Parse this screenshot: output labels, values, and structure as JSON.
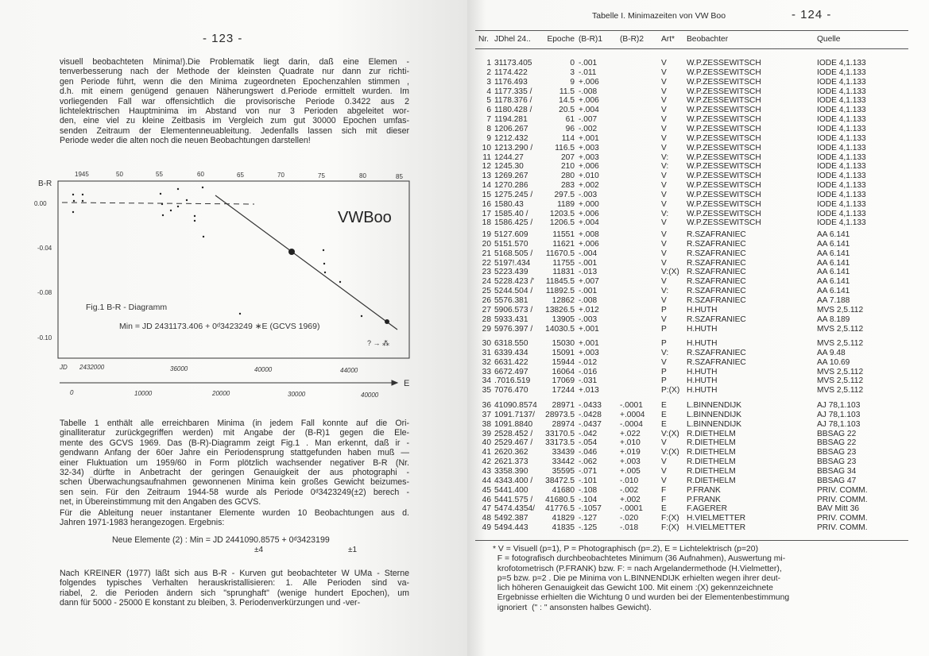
{
  "left_page": {
    "page_number": "- 123 -",
    "para1": [
      "visuell beobachteten Minima!).Die Problematik liegt darin, daß eine Elemen -",
      "tenverbesserung nach der Methode der kleinsten Quadrate nur dann zur richti-",
      "gen Periode führt, wenn die den Minima zugeordneten Epochenzahlen stimmen ,",
      "d.h. mit einem genügend genauen Näherungswert d.Periode ermittelt wurden. Im",
      "vorliegenden Fall war offensichtlich die provisorische Periode 0.3422 aus 2",
      "lichtelektrischen Hauptminima im Abstand von nur 3 Perioden abgeleitet wor-",
      "den, eine viel zu kleine Zeitbasis im Vergleich zum gut 30000 Epochen umfas-",
      "senden Zeitraum der Elementenneuableitung. Jedenfalls lassen sich mit dieser",
      "Periode weder die alten noch die neuen Beobachtungen darstellen!"
    ],
    "figure": {
      "star": "VWBoo",
      "caption": "Fig.1   B-R - Diagramm",
      "formula": "Min = JD 2431173.406 + 0ᵈ3423249 ∗E   (GCVS 1969)",
      "y_label": "B-R",
      "y_ticks": [
        "0.00",
        "-0.04",
        "-0.08",
        "-0.10"
      ],
      "top_ticks": [
        "1945",
        "50",
        "55",
        "60",
        "65",
        "70",
        "75",
        "80",
        "85"
      ],
      "jd_prefix": "JD",
      "jd_ticks": [
        "2432000",
        "36000",
        "40000",
        "44000"
      ],
      "e_ticks": [
        "0",
        "10000",
        "20000",
        "30000",
        "40000"
      ],
      "e_label": "E",
      "annot": "? → ⁂"
    },
    "para2": [
      "Tabelle 1 enthält alle erreichbaren Minima (in jedem Fall konnte auf die Ori-",
      "ginalliteratur zurückgegriffen werden) mit Angabe der (B-R)1 gegen die Ele-",
      "mente des GCVS 1969. Das (B-R)-Diagramm zeigt Fig.1 . Man erkennt, daß ir -",
      "gendwann Anfang der 60er Jahre ein Periodensprung stattgefunden haben muß —",
      "einer Fluktuation um 1959/60 in Form plötzlich wachsender negativer B-R (Nr.",
      "32-34) dürfte in Anbetracht der geringen Genauigkeit der aus photographi -",
      "schen Überwachungsaufnahmen gewonnenen Minima kein großes Gewicht beizumes-",
      "sen sein. Für den Zeitraum 1944-58 wurde als Periode 0ᵈ3423249(±2) berech -",
      "net, in Übereinstimmung mit den Angaben des GCVS."
    ],
    "para3": [
      "Für die Ableitung neuer instantaner Elemente wurden 10 Beobachtungen aus d.",
      "Jahren 1971-1983 herangezogen. Ergebnis:"
    ],
    "formula": "Neue Elemente (2) :  Min = JD 2441090.8575 + 0ᵈ3423199",
    "formula_err1": "±4",
    "formula_err2": "±1",
    "para4": [
      "Nach KREINER (1977) läßt sich aus B-R - Kurven gut beobachteter W UMa - Sterne",
      "folgendes typisches Verhalten herauskristallisieren: 1. Alle Perioden sind va-",
      "riabel, 2. die Perioden ändern sich \"sprunghaft\" (wenige hundert Epochen), um",
      "dann für 5000 - 25000 E konstant zu bleiben, 3. Periodenverkürzungen und -ver-"
    ]
  },
  "right_page": {
    "title": "Tabelle I. Minimazeiten von VW Boo",
    "page_number": "- 124 -",
    "headers": [
      "Nr.",
      "JDhel 24..",
      "Epoche",
      "(B-R)1",
      "(B-R)2",
      "Art*",
      "Beobachter",
      "Quelle"
    ],
    "groups": [
      [
        [
          "1",
          "31173.405",
          "0",
          "-.001",
          "",
          "V",
          "W.P.ZESSEWITSCH",
          "IODE 4,1.133"
        ],
        [
          "2",
          "1174.422",
          "3",
          "-.011",
          "",
          "V",
          "W.P.ZESSEWITSCH",
          "IODE 4,1.133"
        ],
        [
          "3",
          "1176.493",
          "9",
          "+.006",
          "",
          "V",
          "W.P.ZESSEWITSCH",
          "IODE 4,1.133"
        ],
        [
          "4",
          "1177.335 /",
          "11.5",
          "-.008",
          "",
          "V",
          "W.P.ZESSEWITSCH",
          "IODE 4,1.133"
        ],
        [
          "5",
          "1178.376 /",
          "14.5",
          "+.006",
          "",
          "V",
          "W.P.ZESSEWITSCH",
          "IODE 4,1.133"
        ],
        [
          "6",
          "1180.428 /",
          "20.5",
          "+.004",
          "",
          "V",
          "W.P.ZESSEWITSCH",
          "IODE 4,1.133"
        ],
        [
          "7",
          "1194.281",
          "61",
          "-.007",
          "",
          "V",
          "W.P.ZESSEWITSCH",
          "IODE 4,1.133"
        ],
        [
          "8",
          "1206.267",
          "96",
          "-.002",
          "",
          "V",
          "W.P.ZESSEWITSCH",
          "IODE 4,1.133"
        ],
        [
          "9",
          "1212.432",
          "114",
          "+.001",
          "",
          "V",
          "W.P.ZESSEWITSCH",
          "IODE 4,1.133"
        ],
        [
          "10",
          "1213.290 /",
          "116.5",
          "+.003",
          "",
          "V",
          "W.P.ZESSEWITSCH",
          "IODE 4,1.133"
        ],
        [
          "11",
          "1244.27",
          "207",
          "+.003",
          "",
          "V:",
          "W.P.ZESSEWITSCH",
          "IODE 4,1.133"
        ],
        [
          "12",
          "1245.30",
          "210",
          "+.006",
          "",
          "V:",
          "W.P.ZESSEWITSCH",
          "IODE 4,1.133"
        ],
        [
          "13",
          "1269.267",
          "280",
          "+.010",
          "",
          "V",
          "W.P.ZESSEWITSCH",
          "IODE 4,1.133"
        ],
        [
          "14",
          "1270.286",
          "283",
          "+.002",
          "",
          "V",
          "W.P.ZESSEWITSCH",
          "IODE 4,1.133"
        ],
        [
          "15",
          "1275.245 /",
          "297.5",
          "-.003",
          "",
          "V",
          "W.P.ZESSEWITSCH",
          "IODE 4,1.133"
        ],
        [
          "16",
          "1580.43",
          "1189",
          "+.000",
          "",
          "V",
          "W.P.ZESSEWITSCH",
          "IODE 4,1.133"
        ],
        [
          "17",
          "1585.40  /",
          "1203.5",
          "+.006",
          "",
          "V:",
          "W.P.ZESSEWITSCH",
          "IODE 4,1.133"
        ],
        [
          "18",
          "1586.425 /",
          "1206.5",
          "+.004",
          "",
          "V",
          "W.P.ZESSEWITSCH",
          "IODE 4,1.133"
        ]
      ],
      [
        [
          "19",
          "5127.609",
          "11551",
          "+.008",
          "",
          "V",
          "R.SZAFRANIEC",
          "AA  6.141"
        ],
        [
          "20",
          "5151.570",
          "11621",
          "+.006",
          "",
          "V",
          "R.SZAFRANIEC",
          "AA  6.141"
        ],
        [
          "21",
          "5168.505 /",
          "11670.5",
          "-.004",
          "",
          "V",
          "R.SZAFRANIEC",
          "AA  6.141"
        ],
        [
          "22",
          "5197!.434",
          "11755",
          "-.001",
          "",
          "V",
          "R.SZAFRANIEC",
          "AA  6.141"
        ],
        [
          "23",
          "5223.439",
          "11831",
          "-.013",
          "",
          "V:(X)",
          "R.SZAFRANIEC",
          "AA  6.141"
        ],
        [
          "24",
          "5228.423 /'",
          "11845.5",
          "+.007",
          "",
          "V",
          "R.SZAFRANIEC",
          "AA  6.141"
        ],
        [
          "25",
          "5244.504 /",
          "11892.5",
          "-.001",
          "",
          "V:",
          "R.SZAFRANIEC",
          "AA  6.141"
        ],
        [
          "26",
          "5576.381",
          "12862",
          "-.008",
          "",
          "V",
          "R.SZAFRANIEC",
          "AA  7.188"
        ],
        [
          "27",
          "5906.573 /",
          "13826.5",
          "+.012",
          "",
          "P",
          "H.HUTH",
          "MVS 2,5.112"
        ],
        [
          "28",
          "5933.431",
          "13905",
          "-.003",
          "",
          "V",
          "R.SZAFRANIEC",
          "AA  8.189"
        ],
        [
          "29",
          "5976.397 /",
          "14030.5",
          "+.001",
          "",
          "P",
          "H.HUTH",
          "MVS 2,5.112"
        ]
      ],
      [
        [
          "30",
          "6318.550",
          "15030",
          "+.001",
          "",
          "P",
          "H.HUTH",
          "MVS 2,5.112"
        ],
        [
          "31",
          "6339.434",
          "15091",
          "+.003",
          "",
          "V:",
          "R.SZAFRANIEC",
          "AA  9.48"
        ],
        [
          "32",
          "6631.422",
          "15944",
          "-.012",
          "",
          "V",
          "R.SZAFRANIEC",
          "AA 10.69"
        ],
        [
          "33",
          "6672.497",
          "16064",
          "-.016",
          "",
          "P",
          "H.HUTH",
          "MVS 2,5.112"
        ],
        [
          "34",
          ".7016.519",
          "17069",
          "-.031",
          "",
          "P",
          "H.HUTH",
          "MVS 2,5.112"
        ],
        [
          "35",
          "7076.470",
          "17244",
          "+.013",
          "",
          "P:(X)",
          "H.HUTH",
          "MVS 2,5.112"
        ]
      ],
      [
        [
          "36",
          "41090.8574",
          "28971",
          "-.0433",
          "-.0001",
          "E",
          "L.BINNENDIJK",
          "AJ 78,1.103"
        ],
        [
          "37",
          "1091.7137/",
          "28973.5",
          "-.0428",
          "+.0004",
          "E",
          "L.BINNENDIJK",
          "AJ 78,1.103"
        ],
        [
          "38",
          "1091.8840",
          "28974",
          "-.0437",
          "-.0004",
          "E",
          "L.BINNENDIJK",
          "AJ 78,1.103"
        ],
        [
          "39",
          "2528.452 /",
          "33170.5",
          "-.042",
          "+.022",
          "V:(X)",
          "R.DIETHELM",
          "BBSAG 22"
        ],
        [
          "40",
          "2529.467 /",
          "33173.5",
          "-.054",
          "+.010",
          "V",
          "R.DIETHELM",
          "BBSAG 22"
        ],
        [
          "41",
          "2620.362",
          "33439",
          "-.046",
          "+.019",
          "V:(X)",
          "R.DIETHELM",
          "BBSAG 23"
        ],
        [
          "42",
          "2621.373",
          "33442",
          "-.062",
          "+.003",
          "V",
          "R.DIETHELM",
          "BBSAG 23"
        ],
        [
          "43",
          "3358.390",
          "35595",
          "-.071",
          "+.005",
          "V",
          "R.DIETHELM",
          "BBSAG 34"
        ],
        [
          "44",
          "4343.400 /",
          "38472.5",
          "-.101",
          "-.010",
          "V",
          "R.DIETHELM",
          "BBSAG 47"
        ],
        [
          "45",
          "5441.400",
          "41680",
          "-.108",
          "-.002",
          "F",
          "P.FRANK",
          "PRIV. COMM."
        ],
        [
          "46",
          "5441.575 /",
          "41680.5",
          "-.104",
          "+.002",
          "F",
          "P.FRANK",
          "PRIV. COMM."
        ],
        [
          "47",
          "5474.4354/",
          "41776.5",
          "-.1057",
          "-.0001",
          "E",
          "F.AGERER",
          "BAV Mitt 36"
        ],
        [
          "48",
          "5492.387",
          "41829",
          "-.127",
          "-.020",
          "F:(X)",
          "H.VIELMETTER",
          "PRIV. COMM."
        ],
        [
          "49",
          "5494.443",
          "41835",
          "-.125",
          "-.018",
          "F:(X)",
          "H.VIELMETTER",
          "PRIV. COMM."
        ]
      ]
    ],
    "footnote": [
      "* V = Visuell (p=1), P = Photographisch (p=.2), E = Lichtelektrisch (p=20)",
      "  F = fotografisch durchbeobachtetes Minimum (36 Aufnahmen), Auswertung mi-",
      "  krofotometrisch (P.FRANK) bzw. F: = nach Argelandermethode (H.Vielmetter),",
      "  p=5 bzw. p=2 . Die pe Minima von L.BINNENDIJK erhielten wegen ihrer deut-",
      "  lich höheren Genauigkeit das Gewicht 100. Mit einem :(X) gekennzeichnete",
      "  Ergebnisse erhielten die Wichtung 0 und wurden bei der Elementenbestimmung",
      "  ignoriert  (\" : \" ansonsten halbes Gewicht)."
    ]
  }
}
